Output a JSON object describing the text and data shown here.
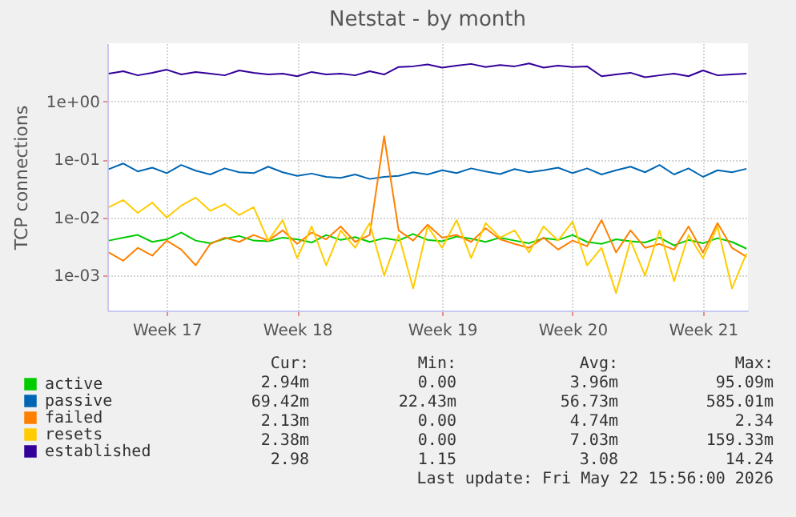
{
  "chart_data": {
    "type": "line",
    "title": "Netstat - by month",
    "ylabel": "TCP connections",
    "categories": [
      null,
      null,
      null,
      null,
      "Week 17",
      null,
      null,
      null,
      null,
      null,
      null,
      null,
      null,
      "Week 18",
      null,
      null,
      null,
      null,
      null,
      null,
      null,
      null,
      null,
      "Week 19",
      null,
      null,
      null,
      null,
      null,
      null,
      null,
      null,
      "Week 20",
      null,
      null,
      null,
      null,
      null,
      null,
      null,
      null,
      "Week 21",
      null,
      null,
      null
    ],
    "series": [
      {
        "name": "active",
        "color": "#00cc00",
        "values": [
          0.004,
          0.0045,
          0.005,
          0.0038,
          0.0042,
          0.0055,
          0.004,
          0.0036,
          0.0043,
          0.0048,
          0.004,
          0.0039,
          0.0045,
          0.0042,
          0.0037,
          0.005,
          0.0041,
          0.0046,
          0.0038,
          0.0044,
          0.004,
          0.0052,
          0.0041,
          0.0039,
          0.0047,
          0.0043,
          0.0038,
          0.0045,
          0.004,
          0.0036,
          0.0044,
          0.0041,
          0.005,
          0.0038,
          0.0035,
          0.0042,
          0.0039,
          0.0037,
          0.0045,
          0.0033,
          0.0041,
          0.0036,
          0.0044,
          0.0038,
          0.0029
        ]
      },
      {
        "name": "passive",
        "color": "#0066b3",
        "values": [
          0.068,
          0.085,
          0.062,
          0.072,
          0.058,
          0.08,
          0.064,
          0.055,
          0.07,
          0.06,
          0.058,
          0.075,
          0.06,
          0.052,
          0.057,
          0.05,
          0.048,
          0.055,
          0.046,
          0.05,
          0.052,
          0.06,
          0.055,
          0.065,
          0.058,
          0.07,
          0.062,
          0.056,
          0.068,
          0.06,
          0.065,
          0.072,
          0.058,
          0.07,
          0.055,
          0.065,
          0.075,
          0.06,
          0.08,
          0.055,
          0.07,
          0.05,
          0.065,
          0.06,
          0.069
        ]
      },
      {
        "name": "failed",
        "color": "#ff8000",
        "values": [
          0.0025,
          0.0018,
          0.003,
          0.0022,
          0.004,
          0.0028,
          0.0015,
          0.0035,
          0.0045,
          0.0038,
          0.005,
          0.004,
          0.006,
          0.0035,
          0.0055,
          0.0042,
          0.007,
          0.0038,
          0.005,
          0.25,
          0.006,
          0.004,
          0.0075,
          0.0045,
          0.005,
          0.0038,
          0.0065,
          0.0042,
          0.0035,
          0.003,
          0.0045,
          0.0028,
          0.004,
          0.0032,
          0.009,
          0.0025,
          0.006,
          0.003,
          0.0035,
          0.0028,
          0.007,
          0.0025,
          0.008,
          0.003,
          0.0021
        ]
      },
      {
        "name": "resets",
        "color": "#ffcc00",
        "values": [
          0.015,
          0.02,
          0.012,
          0.018,
          0.01,
          0.016,
          0.022,
          0.013,
          0.017,
          0.011,
          0.015,
          0.004,
          0.009,
          0.002,
          0.007,
          0.0015,
          0.006,
          0.003,
          0.008,
          0.001,
          0.005,
          0.0006,
          0.007,
          0.003,
          0.009,
          0.002,
          0.008,
          0.0045,
          0.006,
          0.0025,
          0.007,
          0.004,
          0.0085,
          0.0015,
          0.003,
          0.0005,
          0.004,
          0.001,
          0.006,
          0.0008,
          0.005,
          0.002,
          0.007,
          0.0006,
          0.0024
        ]
      },
      {
        "name": "established",
        "color": "#330099",
        "values": [
          3.0,
          3.3,
          2.8,
          3.1,
          3.5,
          2.9,
          3.2,
          3.0,
          2.8,
          3.4,
          3.1,
          2.9,
          3.0,
          2.7,
          3.2,
          2.9,
          3.0,
          2.8,
          3.3,
          2.9,
          3.9,
          4.0,
          4.3,
          3.8,
          4.1,
          4.4,
          3.9,
          4.2,
          4.0,
          4.5,
          3.8,
          4.1,
          3.9,
          4.0,
          2.7,
          2.9,
          3.1,
          2.6,
          2.8,
          3.0,
          2.7,
          3.4,
          2.8,
          2.9,
          3.0
        ]
      }
    ],
    "log": "y",
    "ylim": [
      0.00025,
      10
    ],
    "yticks": [
      {
        "value": 0.001,
        "label": "1e-03"
      },
      {
        "value": 0.01,
        "label": "1e-02"
      },
      {
        "value": 0.1,
        "label": "1e-01"
      },
      {
        "value": 1,
        "label": "1e+00"
      }
    ],
    "grid": true,
    "legend": "bottom left",
    "line_style": "solid",
    "marker": "none",
    "annotations": [
      "Cur:",
      "Min:",
      "Avg:",
      "Max:",
      "2.94m",
      "0.00",
      "3.96m",
      "95.09m",
      "69.42m",
      "22.43m",
      "56.73m",
      "585.01m",
      "2.13m",
      "0.00",
      "4.74m",
      "2.34",
      "2.38m",
      "0.00",
      "7.03m",
      "159.33m",
      "2.98",
      "1.15",
      "3.08",
      "14.24",
      "Last update: Fri May 22 15:56:00 2026"
    ]
  }
}
